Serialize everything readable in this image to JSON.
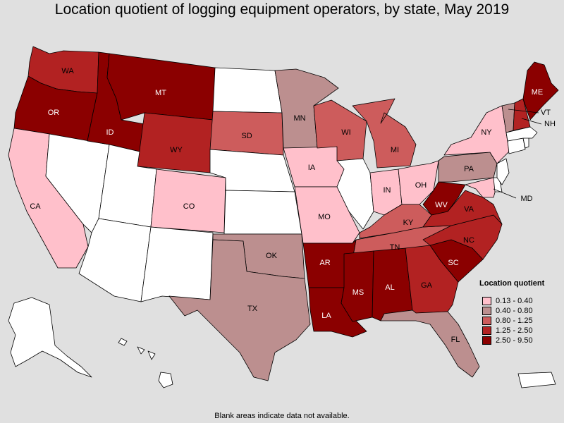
{
  "title": "Location quotient of logging equipment operators, by state, May 2019",
  "footnote": "Blank areas indicate data not available.",
  "legend": {
    "title": "Location quotient",
    "items": [
      {
        "label": "0.13 - 0.40",
        "color": "#ffc0cb"
      },
      {
        "label": "0.40 - 0.80",
        "color": "#bc8f8f"
      },
      {
        "label": "0.80 - 1.25",
        "color": "#cd5c5c"
      },
      {
        "label": "1.25 - 2.50",
        "color": "#b22222"
      },
      {
        "label": "2.50 - 9.50",
        "color": "#8b0000"
      }
    ]
  },
  "states": [
    {
      "abbr": "WA",
      "category": "1.25 - 2.50"
    },
    {
      "abbr": "OR",
      "category": "2.50 - 9.50"
    },
    {
      "abbr": "ID",
      "category": "2.50 - 9.50"
    },
    {
      "abbr": "MT",
      "category": "2.50 - 9.50"
    },
    {
      "abbr": "WY",
      "category": "1.25 - 2.50"
    },
    {
      "abbr": "CA",
      "category": "0.13 - 0.40"
    },
    {
      "abbr": "CO",
      "category": "0.13 - 0.40"
    },
    {
      "abbr": "SD",
      "category": "0.80 - 1.25"
    },
    {
      "abbr": "MN",
      "category": "0.40 - 0.80"
    },
    {
      "abbr": "IA",
      "category": "0.13 - 0.40"
    },
    {
      "abbr": "MO",
      "category": "0.13 - 0.40"
    },
    {
      "abbr": "WI",
      "category": "0.80 - 1.25"
    },
    {
      "abbr": "MI",
      "category": "0.80 - 1.25"
    },
    {
      "abbr": "IN",
      "category": "0.13 - 0.40"
    },
    {
      "abbr": "OH",
      "category": "0.13 - 0.40"
    },
    {
      "abbr": "KY",
      "category": "0.80 - 1.25"
    },
    {
      "abbr": "TN",
      "category": "0.80 - 1.25"
    },
    {
      "abbr": "OK",
      "category": "0.40 - 0.80"
    },
    {
      "abbr": "TX",
      "category": "0.40 - 0.80"
    },
    {
      "abbr": "AR",
      "category": "2.50 - 9.50"
    },
    {
      "abbr": "LA",
      "category": "2.50 - 9.50"
    },
    {
      "abbr": "MS",
      "category": "2.50 - 9.50"
    },
    {
      "abbr": "AL",
      "category": "2.50 - 9.50"
    },
    {
      "abbr": "GA",
      "category": "1.25 - 2.50"
    },
    {
      "abbr": "FL",
      "category": "0.40 - 0.80"
    },
    {
      "abbr": "SC",
      "category": "2.50 - 9.50"
    },
    {
      "abbr": "NC",
      "category": "1.25 - 2.50"
    },
    {
      "abbr": "VA",
      "category": "1.25 - 2.50"
    },
    {
      "abbr": "WV",
      "category": "2.50 - 9.50"
    },
    {
      "abbr": "PA",
      "category": "0.40 - 0.80"
    },
    {
      "abbr": "NY",
      "category": "0.13 - 0.40"
    },
    {
      "abbr": "MD",
      "category": "0.13 - 0.40"
    },
    {
      "abbr": "VT",
      "category": "0.40 - 0.80"
    },
    {
      "abbr": "NH",
      "category": "1.25 - 2.50"
    },
    {
      "abbr": "ME",
      "category": "2.50 - 9.50"
    },
    {
      "abbr": "NV",
      "category": "no data"
    },
    {
      "abbr": "UT",
      "category": "no data"
    },
    {
      "abbr": "AZ",
      "category": "no data"
    },
    {
      "abbr": "NM",
      "category": "no data"
    },
    {
      "abbr": "ND",
      "category": "no data"
    },
    {
      "abbr": "NE",
      "category": "no data"
    },
    {
      "abbr": "KS",
      "category": "no data"
    },
    {
      "abbr": "IL",
      "category": "no data"
    },
    {
      "abbr": "NJ",
      "category": "no data"
    },
    {
      "abbr": "CT",
      "category": "no data"
    },
    {
      "abbr": "MA",
      "category": "no data"
    },
    {
      "abbr": "RI",
      "category": "no data"
    },
    {
      "abbr": "DE",
      "category": "no data"
    },
    {
      "abbr": "AK",
      "category": "no data"
    },
    {
      "abbr": "HI",
      "category": "no data"
    },
    {
      "abbr": "PR",
      "category": "no data"
    }
  ],
  "no_data_color": "#ffffff"
}
